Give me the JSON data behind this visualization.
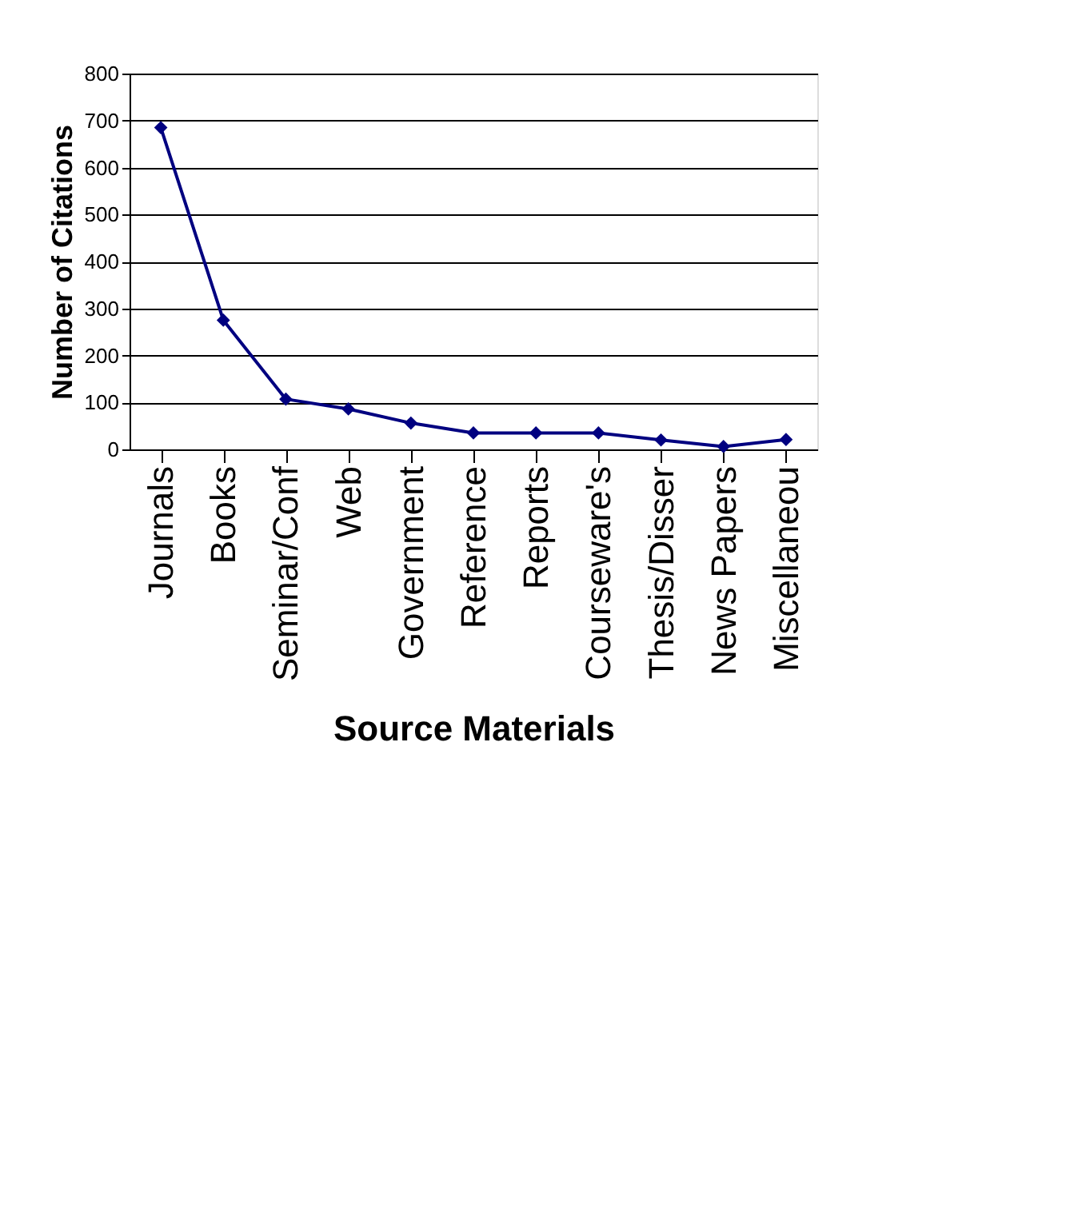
{
  "chart_data": {
    "type": "line",
    "xlabel": "Source Materials",
    "ylabel": "Number of Citations",
    "categories": [
      "Journals",
      "Books",
      "Seminar/Conf",
      "Web",
      "Government",
      "Reference",
      "Reports",
      "Courseware's",
      "Thesis/Disser",
      "News Papers",
      "Miscellaneou"
    ],
    "series": [
      {
        "color": "#000080",
        "values": [
          685,
          275,
          107,
          86,
          56,
          35,
          35,
          35,
          20,
          6,
          21
        ]
      }
    ],
    "ylim": [
      0,
      800
    ],
    "yticks": [
      0,
      100,
      200,
      300,
      400,
      500,
      600,
      700,
      800
    ],
    "grid": "y",
    "marker": "diamond",
    "line_style": "solid"
  }
}
